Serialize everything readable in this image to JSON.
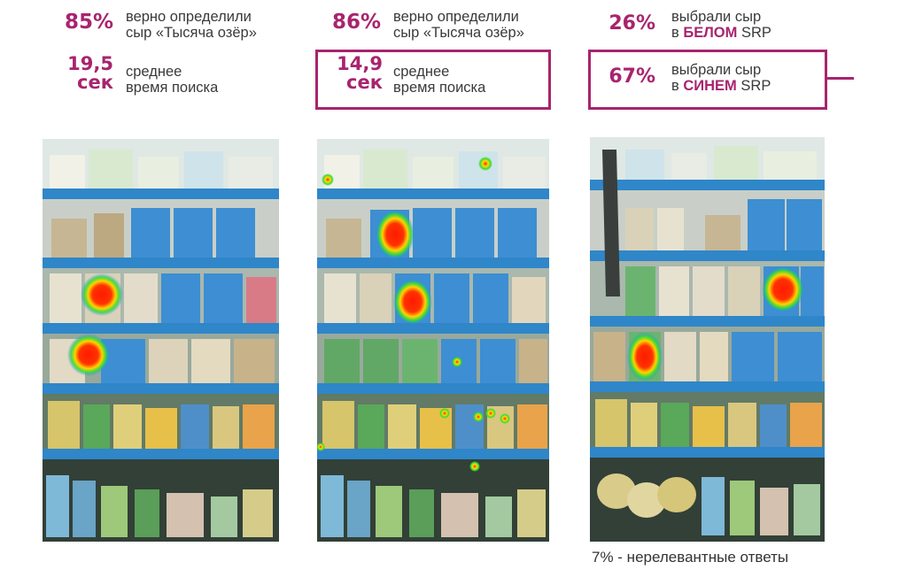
{
  "colors": {
    "accent": "#a8246e",
    "text": "#3a3a3a",
    "shelf_blue": "#2f86c8",
    "price_tag": "#3e9fd8"
  },
  "columns": [
    {
      "stat1": {
        "value": "85%",
        "line1": "верно определили",
        "line2": "сыр «Тысяча озёр»"
      },
      "stat2": {
        "value_num": "19,5",
        "value_unit": "сек",
        "line1": "среднее",
        "line2": "время поиска",
        "highlighted": false
      },
      "shelf_image": {
        "alt": "shelf heatmap 1"
      }
    },
    {
      "stat1": {
        "value": "86%",
        "line1": "верно определили",
        "line2": "сыр «Тысяча озёр»"
      },
      "stat2": {
        "value_num": "14,9",
        "value_unit": "сек",
        "line1": "среднее",
        "line2": "время поиска",
        "highlighted": true
      },
      "shelf_image": {
        "alt": "shelf heatmap 2"
      }
    },
    {
      "stat1": {
        "value": "26%",
        "line1": "выбрали сыр",
        "line2_prefix": "в",
        "line2_emph": "БЕЛОМ",
        "line2_suffix": "SRP"
      },
      "stat2": {
        "value": "67%",
        "line1": "выбрали сыр",
        "line2_prefix": "в",
        "line2_emph": "СИНЕМ",
        "line2_suffix": "SRP",
        "highlighted": true
      },
      "shelf_image": {
        "alt": "shelf heatmap 3"
      }
    }
  ],
  "footnote": "7% - нерелевантные ответы"
}
